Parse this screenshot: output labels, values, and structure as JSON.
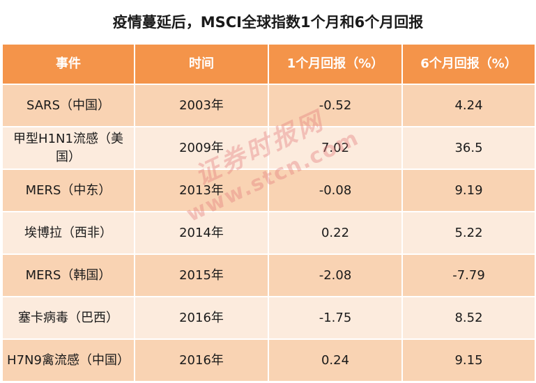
{
  "title": "疫情蔓延后，MSCI全球指数1个月和6个月回报",
  "table": {
    "headers": [
      "事件",
      "时间",
      "1个月回报（%）",
      "6个月回报（%）"
    ],
    "rows": [
      [
        "SARS（中国）",
        "2003年",
        "-0.52",
        "4.24"
      ],
      [
        "甲型H1N1流感（美国）",
        "2009年",
        "7.02",
        "36.5"
      ],
      [
        "MERS（中东）",
        "2013年",
        "-0.08",
        "9.19"
      ],
      [
        "埃博拉（西非）",
        "2014年",
        "0.22",
        "5.22"
      ],
      [
        "MERS（韩国）",
        "2015年",
        "-2.08",
        "-7.79"
      ],
      [
        "塞卡病毒（巴西）",
        "2016年",
        "-1.75",
        "8.52"
      ],
      [
        "H7N9禽流感（中国）",
        "2016年",
        "0.24",
        "9.15"
      ]
    ]
  },
  "watermark": {
    "cn": "证券时报网",
    "en": "www.stcn.com"
  }
}
